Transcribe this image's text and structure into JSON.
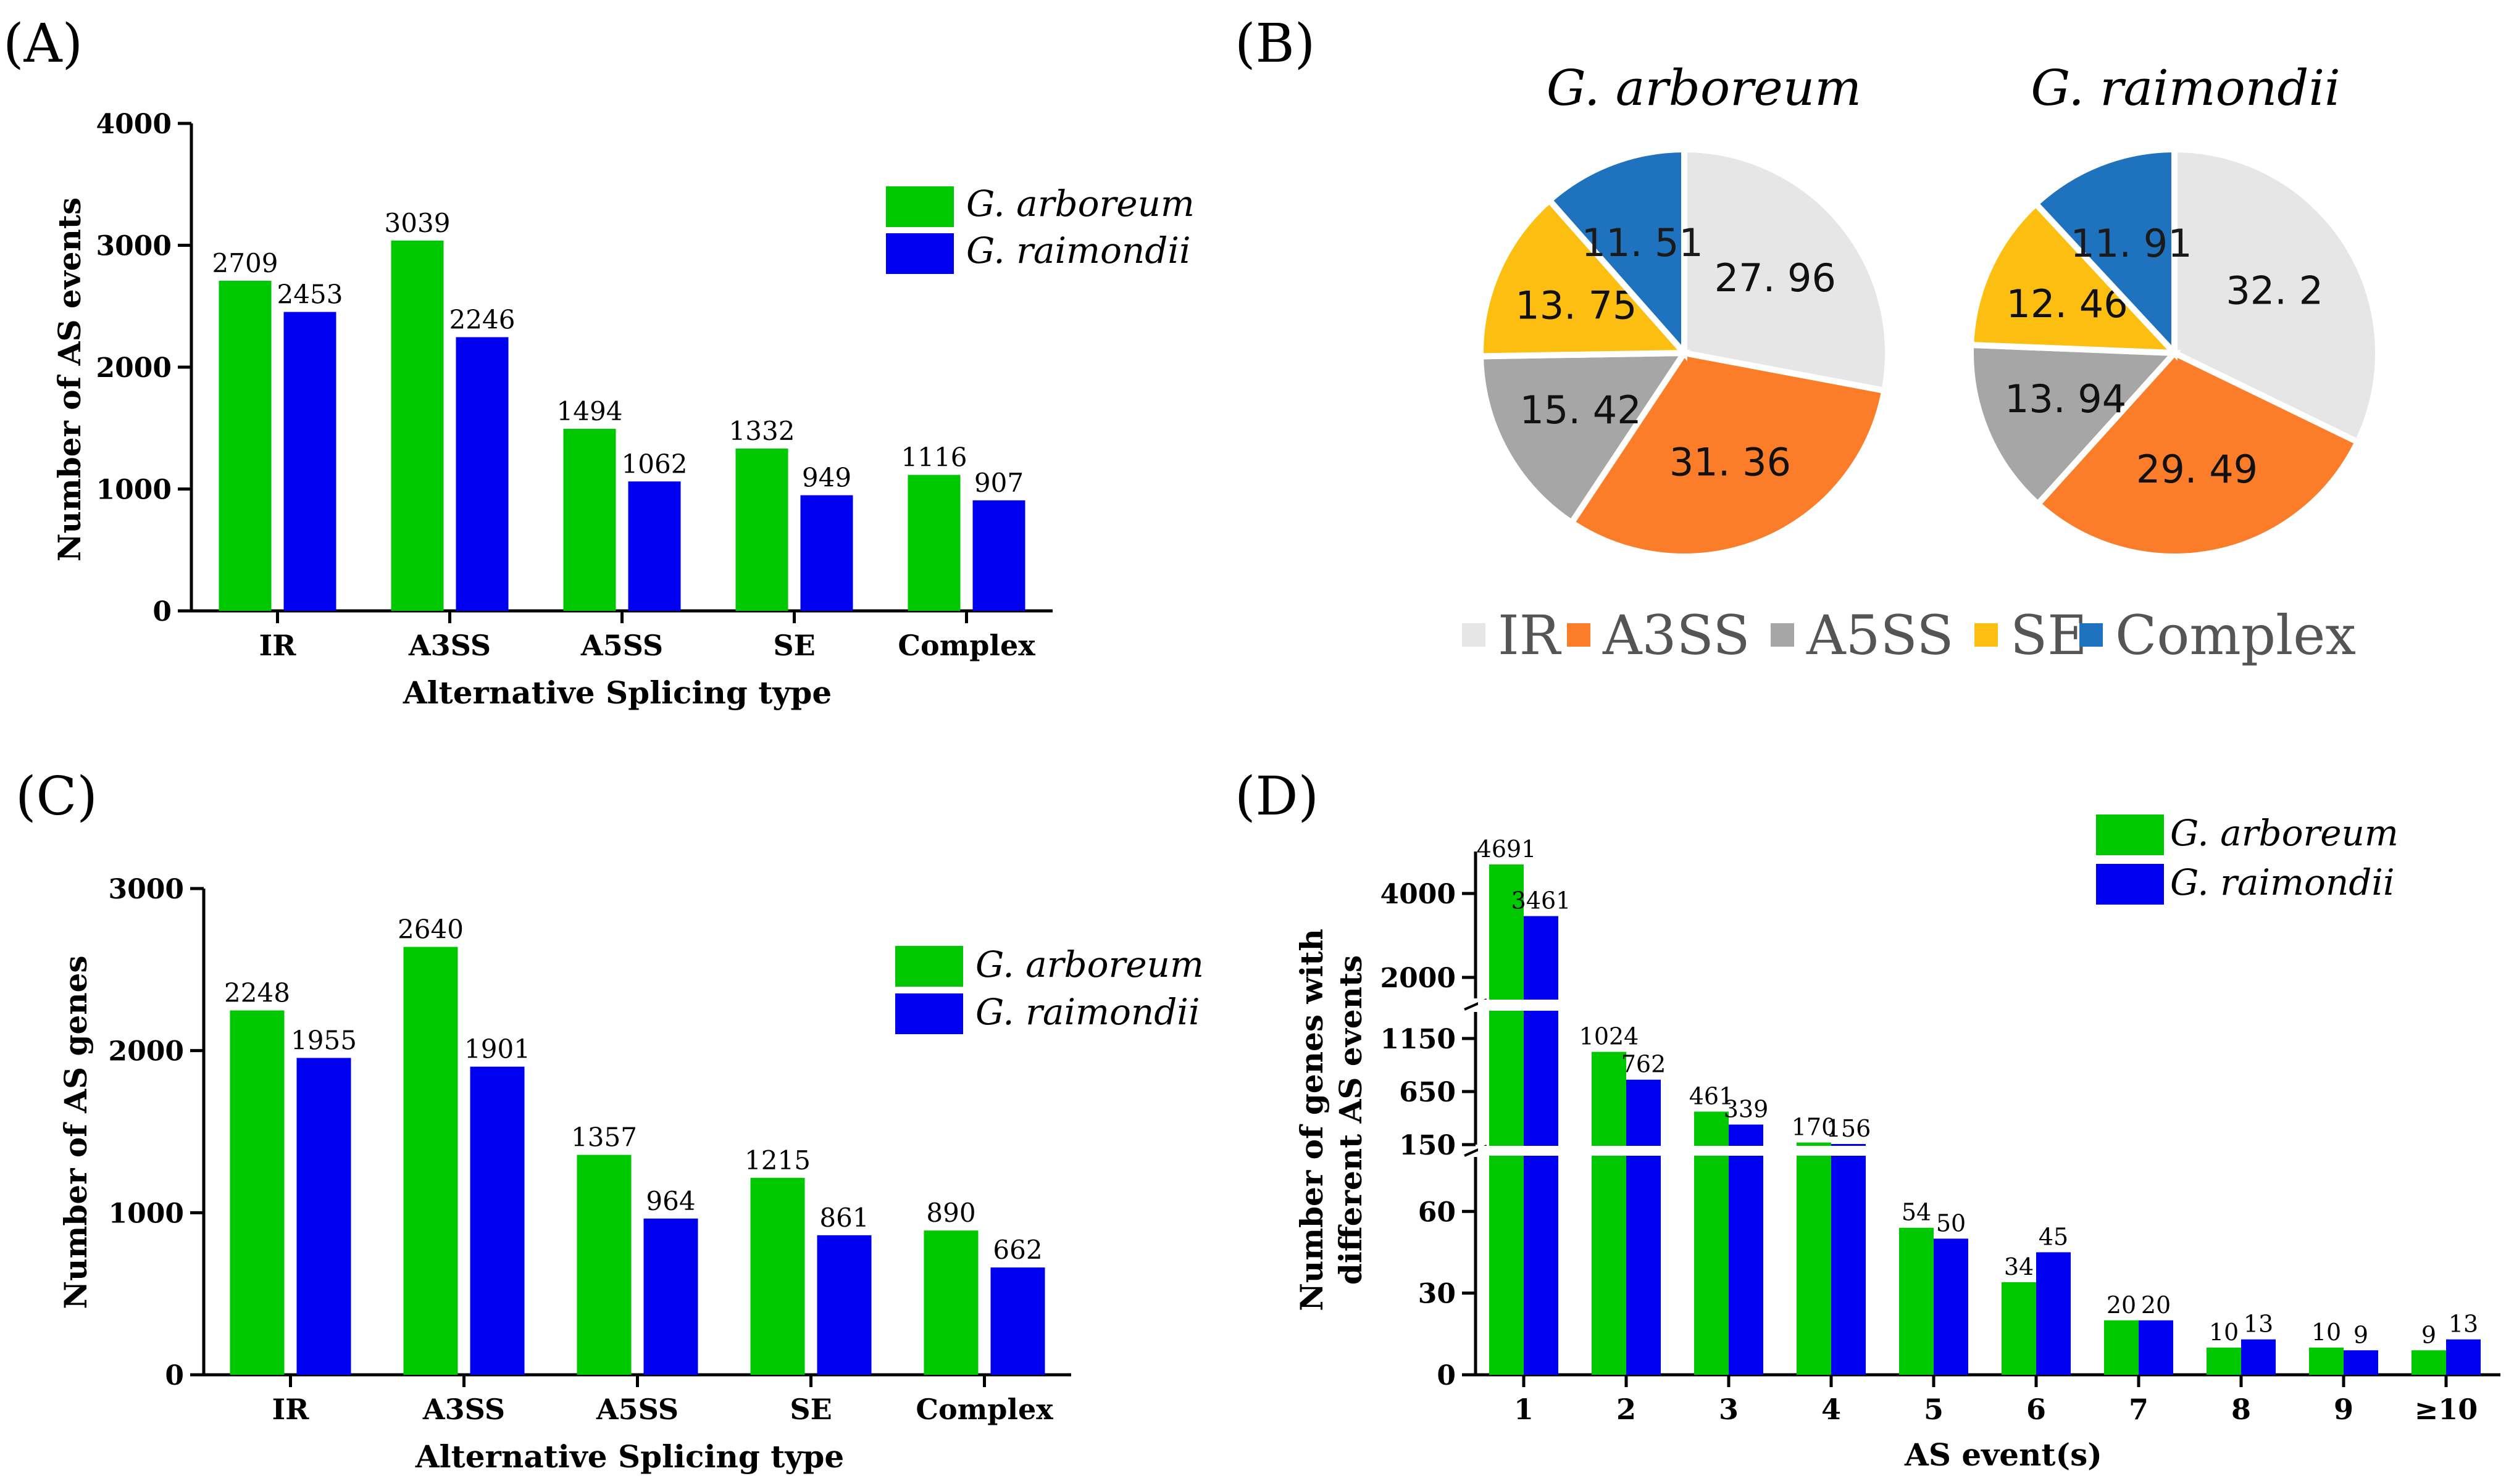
{
  "colors": {
    "arboreum": "#00c800",
    "raimondii": "#0000f0",
    "pie_IR": "#e6e6e6",
    "pie_A3SS": "#fb7d2a",
    "pie_A5SS": "#a6a6a6",
    "pie_SE": "#fdbe12",
    "pie_Complex": "#1e72be"
  },
  "chart_data": [
    {
      "panel": "(A)",
      "type": "bar",
      "categories": [
        "IR",
        "A3SS",
        "A5SS",
        "SE",
        "Complex"
      ],
      "series": [
        {
          "name": "G. arboreum",
          "values": [
            2709,
            3039,
            1494,
            1332,
            1116
          ]
        },
        {
          "name": "G. raimondii",
          "values": [
            2453,
            2246,
            1062,
            949,
            907
          ]
        }
      ],
      "xlabel": "Alternative Splicing type",
      "ylabel": "Number of AS events",
      "ylim": [
        0,
        4000
      ],
      "yticks": [
        0,
        1000,
        2000,
        3000,
        4000
      ],
      "legend": "top-right"
    },
    {
      "panel": "(B)",
      "type": "pie",
      "pies": [
        {
          "title": "G. arboreum",
          "labels": [
            "IR",
            "A3SS",
            "A5SS",
            "SE",
            "Complex"
          ],
          "values": [
            27.96,
            31.36,
            15.42,
            13.75,
            11.51
          ],
          "value_text": [
            "27. 96",
            "31. 36",
            "15. 42",
            "13. 75",
            "11. 51"
          ]
        },
        {
          "title": "G. raimondii",
          "labels": [
            "IR",
            "A3SS",
            "A5SS",
            "SE",
            "Complex"
          ],
          "values": [
            32.2,
            29.49,
            13.94,
            12.46,
            11.91
          ],
          "value_text": [
            "32. 2",
            "29. 49",
            "13. 94",
            "12. 46",
            "11. 91"
          ]
        }
      ],
      "legend_entries": [
        "IR",
        "A3SS",
        "A5SS",
        "SE",
        "Complex"
      ],
      "legend": "bottom"
    },
    {
      "panel": "(C)",
      "type": "bar",
      "categories": [
        "IR",
        "A3SS",
        "A5SS",
        "SE",
        "Complex"
      ],
      "series": [
        {
          "name": "G. arboreum",
          "values": [
            2248,
            2640,
            1357,
            1215,
            890
          ]
        },
        {
          "name": "G. raimondii",
          "values": [
            1955,
            1901,
            964,
            861,
            662
          ]
        }
      ],
      "xlabel": "Alternative Splicing type",
      "ylabel": "Number of AS genes",
      "ylim": [
        0,
        3000
      ],
      "yticks": [
        0,
        1000,
        2000,
        3000
      ],
      "legend": "top-right"
    },
    {
      "panel": "(D)",
      "type": "bar",
      "categories": [
        "1",
        "2",
        "3",
        "4",
        "5",
        "6",
        "7",
        "8",
        "9",
        "≥10"
      ],
      "series": [
        {
          "name": "G. arboreum",
          "values": [
            4691,
            1024,
            461,
            170,
            54,
            34,
            20,
            10,
            10,
            9
          ]
        },
        {
          "name": "G. raimondii",
          "values": [
            3461,
            762,
            339,
            156,
            50,
            45,
            20,
            13,
            9,
            13
          ]
        }
      ],
      "xlabel": "AS event(s)",
      "ylabel_lines": [
        "Number of genes with",
        "different AS events"
      ],
      "broken_axis": [
        {
          "range": [
            0,
            80
          ],
          "ticks": [
            0,
            30,
            60
          ]
        },
        {
          "range": [
            150,
            1400
          ],
          "ticks": [
            150,
            650,
            1150
          ]
        },
        {
          "range": [
            1500,
            5000
          ],
          "ticks": [
            2000,
            4000
          ]
        }
      ],
      "legend": "top-right"
    }
  ]
}
